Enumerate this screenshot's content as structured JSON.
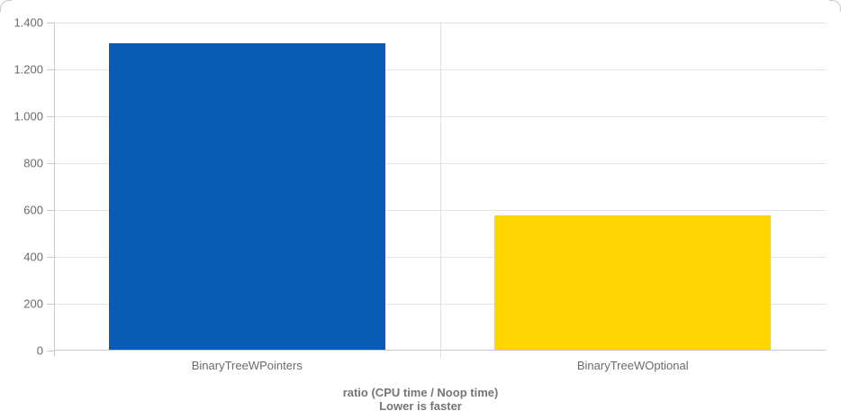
{
  "chart_data": {
    "type": "bar",
    "title": "ratio (CPU time / Noop time)",
    "subtitle": "Lower is faster",
    "categories": [
      "BinaryTreeWPointers",
      "BinaryTreeWOptional"
    ],
    "values": [
      1310,
      578
    ],
    "series_colors": [
      "#0a5bb5",
      "#ffd400"
    ],
    "ylim": [
      0,
      1400
    ],
    "y_ticks": [
      {
        "value": 0,
        "label": "0"
      },
      {
        "value": 200,
        "label": "200"
      },
      {
        "value": 400,
        "label": "400"
      },
      {
        "value": 600,
        "label": "600"
      },
      {
        "value": 800,
        "label": "800"
      },
      {
        "value": 1000,
        "label": "1.000"
      },
      {
        "value": 1200,
        "label": "1.200"
      },
      {
        "value": 1400,
        "label": "1.400"
      }
    ],
    "grid": true,
    "legend": "none",
    "bar_width_fraction": 0.716
  },
  "colors": {
    "background": "#ffffff",
    "gridline": "#e4e4e4",
    "axis": "#c8c8c8",
    "label_text": "#6b6b6b",
    "title_text": "#757575"
  }
}
